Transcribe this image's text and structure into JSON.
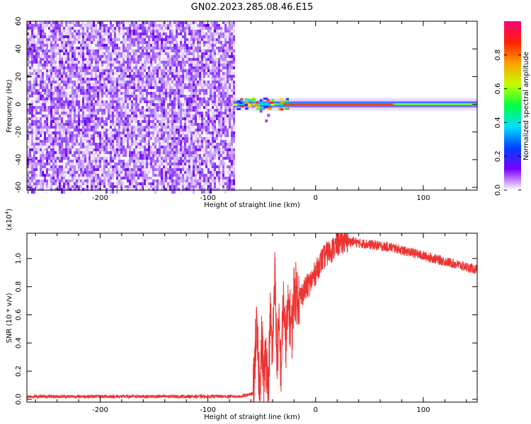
{
  "figure_title": "GN02.2023.285.08.46.E15",
  "chart_data": [
    {
      "type": "heatmap",
      "xlabel": "Height of straight line (km)",
      "ylabel": "Frequency (Hz)",
      "xlim": [
        -268,
        150
      ],
      "ylim": [
        -62,
        60
      ],
      "x_ticks": [
        -200,
        -100,
        0,
        100
      ],
      "y_ticks": [
        -60,
        -40,
        -20,
        0,
        20,
        40,
        60
      ],
      "x_tick_labels": [
        "-200",
        "-100",
        "0",
        "100"
      ],
      "y_tick_labels": [
        "-60",
        "-40",
        "-20",
        "0",
        "20",
        "40",
        "60"
      ],
      "noise_region_x": [
        -268,
        -76
      ],
      "signal_start_x": -76,
      "signal_center_frequency": 0,
      "colorbar": {
        "label": "Normalized spectral amplitude",
        "range": [
          0,
          1
        ],
        "ticks": [
          0.0,
          0.2,
          0.4,
          0.6,
          0.8
        ],
        "tick_labels": [
          "0.0",
          "0.2",
          "0.4",
          "0.6",
          "0.8"
        ],
        "colormap": [
          "#ffffff",
          "#7a00ff",
          "#0040ff",
          "#00e0ff",
          "#00ff40",
          "#c0ff00",
          "#ffa000",
          "#ff2000",
          "#ff0080"
        ]
      }
    },
    {
      "type": "line",
      "xlabel": "Height of straight line (km)",
      "ylabel": "SNR (10 * v/v)",
      "multiplier_label": "(x10",
      "multiplier_exponent": "4",
      "multiplier_close": ")",
      "xlim": [
        -268,
        150
      ],
      "ylim": [
        -0.02,
        1.18
      ],
      "x_ticks": [
        -200,
        -100,
        0,
        100
      ],
      "y_ticks": [
        0.0,
        0.2,
        0.4,
        0.6,
        0.8,
        1.0
      ],
      "x_tick_labels": [
        "-200",
        "-100",
        "0",
        "100"
      ],
      "y_tick_labels": [
        "0.0",
        "0.2",
        "0.4",
        "0.6",
        "0.8",
        "1.0"
      ],
      "line_color": "#ee3333",
      "series": [
        {
          "x": [
            -268,
            -250,
            -200,
            -150,
            -100,
            -70,
            -58,
            -55,
            -52,
            -50,
            -48,
            -46,
            -44,
            -42,
            -40,
            -38,
            -36,
            -34,
            -32,
            -30,
            -28,
            -25,
            -22,
            -20,
            -15,
            -10,
            -5,
            0,
            5,
            10,
            15,
            20,
            25,
            30,
            35,
            40,
            50,
            60,
            70,
            80,
            90,
            100,
            110,
            120,
            130,
            140,
            150
          ],
          "y": [
            0.02,
            0.02,
            0.02,
            0.02,
            0.02,
            0.02,
            0.04,
            0.5,
            0.1,
            0.42,
            0.15,
            0.35,
            0.05,
            0.6,
            0.3,
            0.95,
            0.3,
            0.48,
            0.2,
            0.72,
            0.4,
            0.65,
            0.48,
            0.78,
            0.72,
            0.78,
            0.83,
            0.9,
            0.98,
            1.03,
            1.06,
            1.1,
            1.12,
            1.12,
            1.12,
            1.11,
            1.1,
            1.09,
            1.08,
            1.06,
            1.04,
            1.02,
            1.0,
            0.98,
            0.96,
            0.94,
            0.92
          ]
        }
      ]
    }
  ]
}
